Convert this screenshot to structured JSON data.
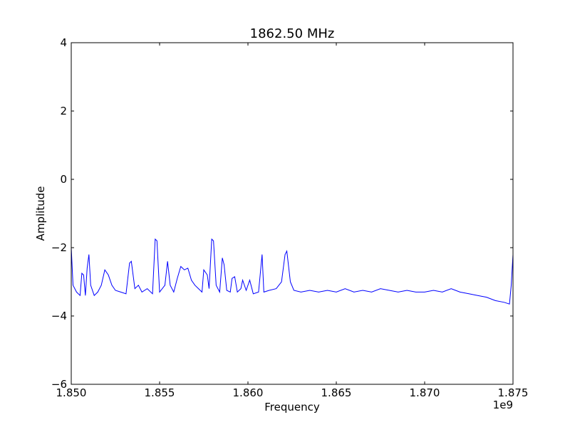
{
  "chart_data": {
    "type": "line",
    "title": "1862.50 MHz",
    "x_label": "Frequency",
    "y_label": "Amplitude",
    "x_offset_label": "1e9",
    "color": "#0000ff",
    "x": [
      1850000000,
      1850100000,
      1850300000,
      1850500000,
      1850600000,
      1850700000,
      1850800000,
      1850900000,
      1851000000,
      1851100000,
      1851300000,
      1851500000,
      1851700000,
      1851900000,
      1852100000,
      1852300000,
      1852500000,
      1852800000,
      1853100000,
      1853300000,
      1853400000,
      1853600000,
      1853800000,
      1854000000,
      1854300000,
      1854600000,
      1854750000,
      1854850000,
      1855000000,
      1855300000,
      1855450000,
      1855600000,
      1855800000,
      1856000000,
      1856200000,
      1856400000,
      1856600000,
      1856800000,
      1857000000,
      1857200000,
      1857400000,
      1857500000,
      1857700000,
      1857800000,
      1857950000,
      1858050000,
      1858200000,
      1858400000,
      1858550000,
      1858650000,
      1858800000,
      1859000000,
      1859100000,
      1859250000,
      1859400000,
      1859600000,
      1859700000,
      1859900000,
      1860100000,
      1860300000,
      1860600000,
      1860800000,
      1860900000,
      1861200000,
      1861600000,
      1861900000,
      1862100000,
      1862200000,
      1862400000,
      1862600000,
      1863000000,
      1863500000,
      1864000000,
      1864500000,
      1865000000,
      1865500000,
      1866000000,
      1866500000,
      1867000000,
      1867500000,
      1868000000,
      1868500000,
      1869000000,
      1869500000,
      1870000000,
      1870500000,
      1871000000,
      1871500000,
      1872000000,
      1872500000,
      1873000000,
      1873500000,
      1874000000,
      1874500000,
      1874800000,
      1874900000,
      1875000000
    ],
    "values": [
      -2.0,
      -3.1,
      -3.3,
      -3.4,
      -2.75,
      -2.8,
      -3.4,
      -2.6,
      -2.2,
      -3.1,
      -3.4,
      -3.3,
      -3.1,
      -2.65,
      -2.8,
      -3.1,
      -3.25,
      -3.3,
      -3.35,
      -2.45,
      -2.4,
      -3.2,
      -3.1,
      -3.3,
      -3.2,
      -3.35,
      -1.75,
      -1.8,
      -3.3,
      -3.1,
      -2.4,
      -3.1,
      -3.3,
      -2.9,
      -2.55,
      -2.65,
      -2.6,
      -2.95,
      -3.1,
      -3.2,
      -3.3,
      -2.65,
      -2.8,
      -3.2,
      -1.75,
      -1.8,
      -3.1,
      -3.3,
      -2.3,
      -2.5,
      -3.25,
      -3.3,
      -2.9,
      -2.85,
      -3.3,
      -3.2,
      -2.95,
      -3.25,
      -2.95,
      -3.35,
      -3.3,
      -2.2,
      -3.3,
      -3.25,
      -3.2,
      -3.0,
      -2.2,
      -2.1,
      -3.0,
      -3.25,
      -3.3,
      -3.25,
      -3.3,
      -3.25,
      -3.3,
      -3.2,
      -3.3,
      -3.25,
      -3.3,
      -3.2,
      -3.25,
      -3.3,
      -3.25,
      -3.3,
      -3.3,
      -3.25,
      -3.3,
      -3.2,
      -3.3,
      -3.35,
      -3.4,
      -3.45,
      -3.55,
      -3.6,
      -3.65,
      -3.1,
      -2.2
    ],
    "xlim": [
      1850000000,
      1875000000
    ],
    "xticks": [
      {
        "value": 1850000000,
        "label": "1.850"
      },
      {
        "value": 1855000000,
        "label": "1.855"
      },
      {
        "value": 1860000000,
        "label": "1.860"
      },
      {
        "value": 1865000000,
        "label": "1.865"
      },
      {
        "value": 1870000000,
        "label": "1.870"
      },
      {
        "value": 1875000000,
        "label": "1.875"
      }
    ],
    "ylim": [
      -6,
      4
    ],
    "yticks": [
      {
        "value": -6,
        "label": "−6"
      },
      {
        "value": -4,
        "label": "−4"
      },
      {
        "value": -2,
        "label": "−2"
      },
      0,
      2,
      4
    ],
    "grid": false
  }
}
